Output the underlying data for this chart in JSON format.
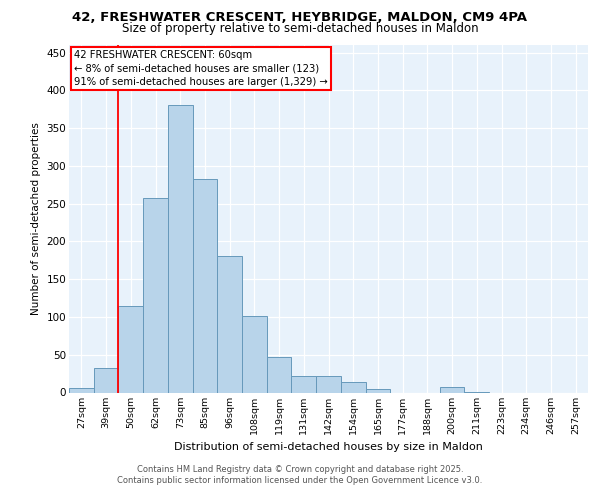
{
  "title_line1": "42, FRESHWATER CRESCENT, HEYBRIDGE, MALDON, CM9 4PA",
  "title_line2": "Size of property relative to semi-detached houses in Maldon",
  "xlabel": "Distribution of semi-detached houses by size in Maldon",
  "ylabel": "Number of semi-detached properties",
  "categories": [
    "27sqm",
    "39sqm",
    "50sqm",
    "62sqm",
    "73sqm",
    "85sqm",
    "96sqm",
    "108sqm",
    "119sqm",
    "131sqm",
    "142sqm",
    "154sqm",
    "165sqm",
    "177sqm",
    "188sqm",
    "200sqm",
    "211sqm",
    "223sqm",
    "234sqm",
    "246sqm",
    "257sqm"
  ],
  "values": [
    6,
    33,
    115,
    258,
    380,
    282,
    181,
    101,
    47,
    22,
    22,
    14,
    5,
    0,
    0,
    7,
    1,
    0,
    0,
    0,
    0
  ],
  "bar_color": "#b8d4ea",
  "bar_edge_color": "#6699bb",
  "ylim": [
    0,
    460
  ],
  "yticks": [
    0,
    50,
    100,
    150,
    200,
    250,
    300,
    350,
    400,
    450
  ],
  "annotation_line1": "42 FRESHWATER CRESCENT: 60sqm",
  "annotation_line2": "← 8% of semi-detached houses are smaller (123)",
  "annotation_line3": "91% of semi-detached houses are larger (1,329) →",
  "bg_color": "#e8f2fb",
  "grid_color": "#ffffff",
  "red_line_x": 1.5,
  "footer_line1": "Contains HM Land Registry data © Crown copyright and database right 2025.",
  "footer_line2": "Contains public sector information licensed under the Open Government Licence v3.0."
}
